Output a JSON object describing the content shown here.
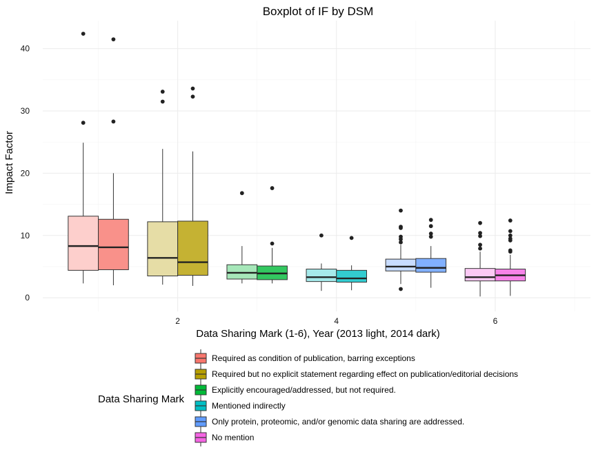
{
  "chart_data": {
    "type": "boxplot",
    "title": "Boxplot of IF by DSM",
    "xlabel": "Data Sharing Mark (1-6), Year (2013 light, 2014 dark)",
    "ylabel": "Impact Factor",
    "xlim": [
      0.3,
      7.2
    ],
    "ylim": [
      -2.2,
      44.5
    ],
    "x_ticks": [
      2,
      4,
      6
    ],
    "y_ticks": [
      0,
      10,
      20,
      30,
      40
    ],
    "grid": true,
    "legend": {
      "title": "Data Sharing Mark",
      "position": "bottom",
      "entries": [
        {
          "label": "Required as condition of publication, barring exceptions",
          "color": "#F8766D"
        },
        {
          "label": "Required but no explicit statement regarding effect on publication/editorial decisions",
          "color": "#B79F00"
        },
        {
          "label": "Explicitly encouraged/addressed, but not required.",
          "color": "#00BA38"
        },
        {
          "label": "Mentioned indirectly",
          "color": "#00BFC4"
        },
        {
          "label": "Only protein, proteomic, and/or genomic data sharing are addressed.",
          "color": "#619CFF"
        },
        {
          "label": "No mention",
          "color": "#F564E3"
        }
      ]
    },
    "boxes": [
      {
        "group": 1,
        "year": 2013,
        "x": 0.81,
        "light": true,
        "color": "#F8766D",
        "whisker_low": 2.3,
        "q1": 4.4,
        "median": 8.3,
        "q3": 13.1,
        "whisker_high": 24.9,
        "outliers": [
          28.1,
          42.4
        ]
      },
      {
        "group": 1,
        "year": 2014,
        "x": 1.19,
        "light": false,
        "color": "#F8766D",
        "whisker_low": 2.0,
        "q1": 4.5,
        "median": 8.1,
        "q3": 12.6,
        "whisker_high": 20.0,
        "outliers": [
          28.3,
          41.5
        ]
      },
      {
        "group": 2,
        "year": 2013,
        "x": 1.81,
        "light": true,
        "color": "#B79F00",
        "whisker_low": 2.1,
        "q1": 3.5,
        "median": 6.4,
        "q3": 12.2,
        "whisker_high": 23.9,
        "outliers": [
          31.5,
          33.1
        ]
      },
      {
        "group": 2,
        "year": 2014,
        "x": 2.19,
        "light": false,
        "color": "#B79F00",
        "whisker_low": 1.9,
        "q1": 3.6,
        "median": 5.7,
        "q3": 12.3,
        "whisker_high": 23.5,
        "outliers": [
          32.3,
          33.6
        ]
      },
      {
        "group": 3,
        "year": 2013,
        "x": 2.81,
        "light": true,
        "color": "#00BA38",
        "whisker_low": 2.3,
        "q1": 3.0,
        "median": 4.0,
        "q3": 5.3,
        "whisker_high": 8.3,
        "outliers": [
          16.8
        ]
      },
      {
        "group": 3,
        "year": 2014,
        "x": 3.19,
        "light": false,
        "color": "#00BA38",
        "whisker_low": 2.3,
        "q1": 2.9,
        "median": 3.9,
        "q3": 5.1,
        "whisker_high": 8.0,
        "outliers": [
          8.7,
          17.6
        ]
      },
      {
        "group": 4,
        "year": 2013,
        "x": 3.81,
        "light": true,
        "color": "#00BFC4",
        "whisker_low": 1.1,
        "q1": 2.6,
        "median": 3.3,
        "q3": 4.6,
        "whisker_high": 5.5,
        "outliers": [
          10.0
        ]
      },
      {
        "group": 4,
        "year": 2014,
        "x": 4.19,
        "light": false,
        "color": "#00BFC4",
        "whisker_low": 1.2,
        "q1": 2.5,
        "median": 3.1,
        "q3": 4.4,
        "whisker_high": 5.2,
        "outliers": [
          9.6
        ]
      },
      {
        "group": 5,
        "year": 2013,
        "x": 4.81,
        "light": true,
        "color": "#619CFF",
        "whisker_low": 2.2,
        "q1": 4.3,
        "median": 5.0,
        "q3": 6.2,
        "whisker_high": 8.5,
        "outliers": [
          1.4,
          8.9,
          9.4,
          9.8,
          11.2,
          11.4,
          14.0
        ]
      },
      {
        "group": 5,
        "year": 2014,
        "x": 5.19,
        "light": false,
        "color": "#619CFF",
        "whisker_low": 1.6,
        "q1": 4.1,
        "median": 4.8,
        "q3": 6.3,
        "whisker_high": 8.3,
        "outliers": [
          9.8,
          10.3,
          11.5,
          12.5
        ]
      },
      {
        "group": 6,
        "year": 2013,
        "x": 5.81,
        "light": true,
        "color": "#F564E3",
        "whisker_low": 0.2,
        "q1": 2.7,
        "median": 3.3,
        "q3": 4.7,
        "whisker_high": 7.4,
        "outliers": [
          7.9,
          8.5,
          9.9,
          10.4,
          12.0
        ]
      },
      {
        "group": 6,
        "year": 2014,
        "x": 6.19,
        "light": false,
        "color": "#F564E3",
        "whisker_low": 0.3,
        "q1": 2.7,
        "median": 3.6,
        "q3": 4.6,
        "whisker_high": 6.9,
        "outliers": [
          7.4,
          7.6,
          9.2,
          9.5,
          10.0,
          10.7,
          12.4
        ]
      }
    ]
  }
}
